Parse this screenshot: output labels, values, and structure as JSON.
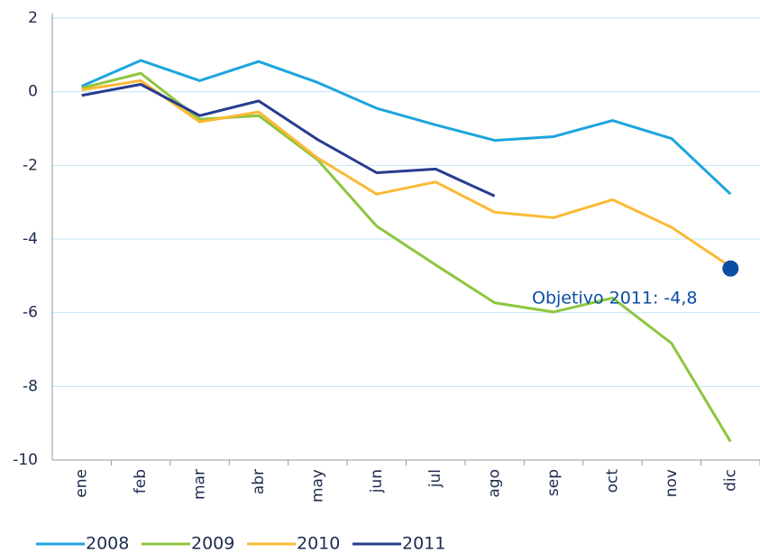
{
  "chart_data": {
    "type": "line",
    "categories": [
      "ene",
      "feb",
      "mar",
      "abr",
      "may",
      "jun",
      "jul",
      "ago",
      "sep",
      "oct",
      "nov",
      "dic"
    ],
    "series": [
      {
        "name": "2008",
        "color": "#1ea5dd",
        "values": [
          0.15,
          0.85,
          0.3,
          0.82,
          0.25,
          -0.45,
          -0.9,
          -1.32,
          -1.22,
          -0.78,
          -1.27,
          -2.78
        ]
      },
      {
        "name": "2009",
        "color": "#8dc63f",
        "values": [
          0.1,
          0.5,
          -0.75,
          -0.65,
          -1.85,
          -3.65,
          -4.7,
          -5.73,
          -5.98,
          -5.6,
          -6.83,
          -9.5
        ]
      },
      {
        "name": "2010",
        "color": "#fbb934",
        "values": [
          0.05,
          0.3,
          -0.82,
          -0.55,
          -1.8,
          -2.78,
          -2.45,
          -3.27,
          -3.42,
          -2.93,
          -3.68,
          -4.75
        ]
      },
      {
        "name": "2011",
        "color": "#283c8e",
        "values": [
          -0.1,
          0.2,
          -0.65,
          -0.25,
          -1.3,
          -2.2,
          -2.1,
          -2.83,
          null,
          null,
          null,
          null
        ]
      }
    ],
    "target": {
      "label": "Objetivo 2011: -4,8",
      "x": "dic",
      "value": -4.8,
      "color": "#0c4ea2"
    },
    "ylim": [
      -10,
      2
    ],
    "yticks": [
      -10,
      -8,
      -6,
      -4,
      -2,
      0,
      2
    ],
    "grid": true
  }
}
